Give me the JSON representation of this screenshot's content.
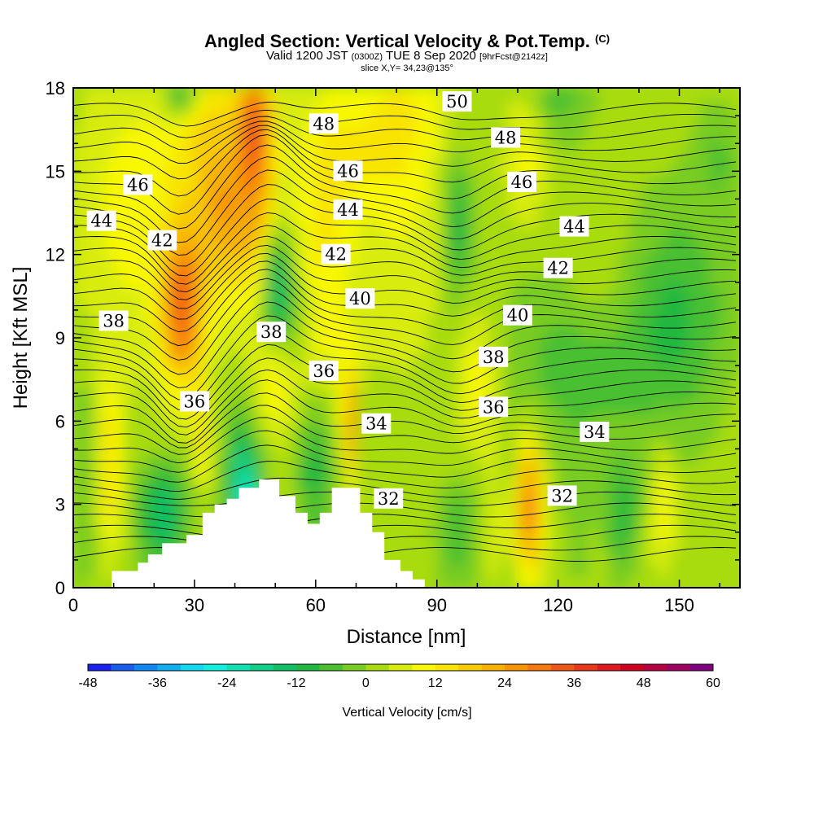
{
  "header": {
    "title": "Angled Section: Vertical Velocity & Pot.Temp.",
    "title_unit": "(C)",
    "valid_prefix": "Valid 1200 JST",
    "valid_utc": "(0300Z)",
    "valid_date": "TUE 8 Sep 2020",
    "forecast": "[9hrFcst@2142z]",
    "slice": "slice X,Y= 34,23@135°"
  },
  "chart_data": {
    "type": "heatmap",
    "title": "Angled Section: Vertical Velocity & Pot.Temp. (C)",
    "xlabel": "Distance [nm]",
    "ylabel": "Height [Kft MSL]",
    "xlim": [
      0,
      165
    ],
    "ylim": [
      0,
      18
    ],
    "x_ticks": [
      "0",
      "30",
      "60",
      "90",
      "120",
      "150"
    ],
    "y_ticks": [
      "0",
      "3",
      "6",
      "9",
      "12",
      "15",
      "18"
    ],
    "colorbar": {
      "label": "Vertical Velocity [cm/s]",
      "tick_labels": [
        "-48",
        "-36",
        "-24",
        "-12",
        "0",
        "12",
        "24",
        "36",
        "48",
        "60"
      ],
      "range": [
        -48,
        60
      ],
      "step": 4,
      "colors": [
        "#1a20f0",
        "#1a5cf0",
        "#0f88f5",
        "#10b0f0",
        "#10d8f0",
        "#10f0dc",
        "#10e0b0",
        "#10d088",
        "#10c064",
        "#20b840",
        "#4ac030",
        "#78cc20",
        "#a8dc10",
        "#d8ec0c",
        "#f8f800",
        "#f8e400",
        "#f8cc00",
        "#f8b000",
        "#f89400",
        "#f87810",
        "#f05818",
        "#e83818",
        "#e01820",
        "#d00020",
        "#b80040",
        "#a00060",
        "#800080"
      ]
    },
    "potential_temperature_contours": [
      {
        "value": 32,
        "label_x": 78,
        "label_y": 3.2
      },
      {
        "value": 32,
        "label_x": 121,
        "label_y": 3.3
      },
      {
        "value": 34,
        "label_x": 75,
        "label_y": 5.9
      },
      {
        "value": 34,
        "label_x": 129,
        "label_y": 5.6
      },
      {
        "value": 36,
        "label_x": 30,
        "label_y": 6.7
      },
      {
        "value": 36,
        "label_x": 62,
        "label_y": 7.8
      },
      {
        "value": 36,
        "label_x": 104,
        "label_y": 6.5
      },
      {
        "value": 38,
        "label_x": 10,
        "label_y": 9.6
      },
      {
        "value": 38,
        "label_x": 49,
        "label_y": 9.2
      },
      {
        "value": 38,
        "label_x": 104,
        "label_y": 8.3
      },
      {
        "value": 40,
        "label_x": 71,
        "label_y": 10.4
      },
      {
        "value": 40,
        "label_x": 110,
        "label_y": 9.8
      },
      {
        "value": 42,
        "label_x": 22,
        "label_y": 12.5
      },
      {
        "value": 42,
        "label_x": 65,
        "label_y": 12.0
      },
      {
        "value": 42,
        "label_x": 120,
        "label_y": 11.5
      },
      {
        "value": 44,
        "label_x": 7,
        "label_y": 13.2
      },
      {
        "value": 44,
        "label_x": 68,
        "label_y": 13.6
      },
      {
        "value": 44,
        "label_x": 124,
        "label_y": 13.0
      },
      {
        "value": 46,
        "label_x": 16,
        "label_y": 14.5
      },
      {
        "value": 46,
        "label_x": 68,
        "label_y": 15.0
      },
      {
        "value": 46,
        "label_x": 111,
        "label_y": 14.6
      },
      {
        "value": 48,
        "label_x": 62,
        "label_y": 16.7
      },
      {
        "value": 48,
        "label_x": 107,
        "label_y": 16.2
      },
      {
        "value": 50,
        "label_x": 95,
        "label_y": 17.5
      }
    ],
    "terrain": [
      [
        0,
        0
      ],
      [
        9.5,
        0
      ],
      [
        9.5,
        0.6
      ],
      [
        16,
        0.6
      ],
      [
        16,
        0.9
      ],
      [
        18.5,
        0.9
      ],
      [
        18.5,
        1.2
      ],
      [
        22,
        1.2
      ],
      [
        22,
        1.6
      ],
      [
        28,
        1.6
      ],
      [
        28,
        1.9
      ],
      [
        32,
        1.9
      ],
      [
        32,
        2.7
      ],
      [
        35,
        2.7
      ],
      [
        35,
        3.0
      ],
      [
        38,
        3.0
      ],
      [
        38,
        3.2
      ],
      [
        41,
        3.2
      ],
      [
        41,
        3.6
      ],
      [
        46,
        3.6
      ],
      [
        46,
        3.9
      ],
      [
        51,
        3.9
      ],
      [
        51,
        3.3
      ],
      [
        55,
        3.3
      ],
      [
        55,
        2.7
      ],
      [
        58,
        2.7
      ],
      [
        58,
        2.3
      ],
      [
        61,
        2.3
      ],
      [
        61,
        2.7
      ],
      [
        64,
        2.7
      ],
      [
        64,
        3.6
      ],
      [
        71,
        3.6
      ],
      [
        71,
        2.7
      ],
      [
        74,
        2.7
      ],
      [
        74,
        2.0
      ],
      [
        77,
        2.0
      ],
      [
        77,
        1.0
      ],
      [
        81,
        1.0
      ],
      [
        81,
        0.6
      ],
      [
        84,
        0.6
      ],
      [
        84,
        0.3
      ],
      [
        87,
        0.3
      ],
      [
        87,
        0
      ]
    ]
  }
}
